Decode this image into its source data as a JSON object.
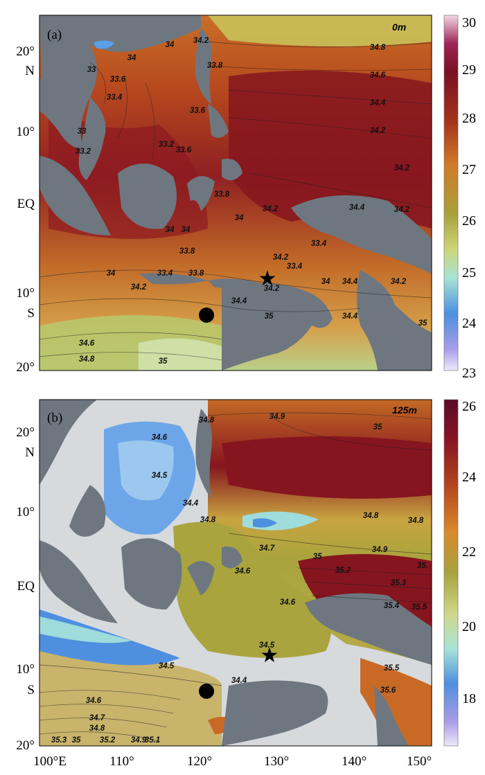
{
  "figure": {
    "panels": [
      {
        "id": "a",
        "label": "(a)",
        "depth": "0m",
        "colorbar": {
          "ticks": [
            "30",
            "29",
            "28",
            "27",
            "26",
            "25",
            "24",
            "23"
          ]
        },
        "contour_labels": [
          "34.2",
          "34",
          "34",
          "33.8",
          "33",
          "33.6",
          "33.4",
          "33.6",
          "33.2",
          "33.6",
          "33",
          "33.2",
          "34.8",
          "34.6",
          "34.4",
          "34.2",
          "34.2",
          "33.8",
          "34.2",
          "34.4",
          "34",
          "34.2",
          "34",
          "34",
          "33.4",
          "34.2",
          "33.8",
          "33.4",
          "33.8",
          "34",
          "34.2",
          "33.4",
          "34",
          "34.2",
          "34.4",
          "34.2",
          "34.4",
          "35",
          "34.4",
          "35",
          "34.6",
          "34.8",
          "35"
        ]
      },
      {
        "id": "b",
        "label": "(b)",
        "depth": "125m",
        "colorbar": {
          "ticks": [
            "26",
            "24",
            "22",
            "20",
            "18"
          ]
        },
        "contour_labels": [
          "34.6",
          "34.8",
          "34.9",
          "35",
          "34.5",
          "34.4",
          "34.8",
          "34.8",
          "34.8",
          "34.9",
          "35",
          "34.7",
          "34.6",
          "35.2",
          "35.3",
          "35.",
          "35.4",
          "35.5",
          "34.6",
          "34.5",
          "34.5",
          "34.4",
          "35.5",
          "35.6",
          "34.6",
          "34.7",
          "34.8",
          "35",
          "34.9",
          "35.1",
          "35.3",
          "35.2"
        ]
      }
    ],
    "lat_labels": [
      "20°",
      "N",
      "10°",
      "EQ",
      "10°",
      "S",
      "20°"
    ],
    "lat_labels_b": [
      "20°",
      "N",
      "10°",
      "EQ",
      "10°",
      "S",
      "20°"
    ],
    "lon_labels": [
      "100°E",
      "110°",
      "120°",
      "130°",
      "140°",
      "150°"
    ],
    "markers": {
      "star": {
        "symbol": "★"
      },
      "circle": {
        "symbol": "●"
      }
    },
    "colors": {
      "land": "#6e7780",
      "land_light": "#d7dadd",
      "warm_dark": "#7d1020",
      "warm": "#b2451a",
      "orange": "#cf7b22",
      "olive": "#a8a23c",
      "green": "#c9d26e",
      "cyan": "#9fdcdc",
      "blue": "#4f8fdf",
      "violet": "#b9a6e8"
    }
  }
}
